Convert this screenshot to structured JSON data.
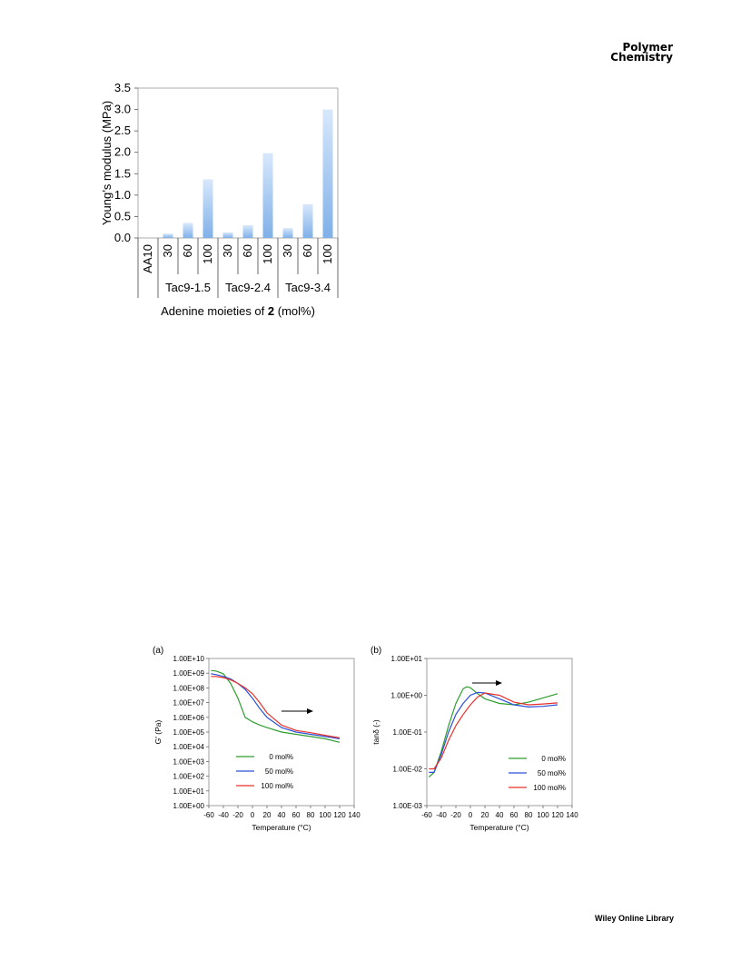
{
  "journal": {
    "line1": "Polymer",
    "line2": "Chemistry"
  },
  "footer": "Wiley Online Library",
  "chart_data": [
    {
      "type": "bar",
      "ylabel": "Young’s modulus (MPa)",
      "xlabel_prefix": "Adenine moieties of ",
      "xlabel_bold": "2",
      "xlabel_suffix": " (mol%)",
      "ylim": [
        0,
        3.5
      ],
      "yticks": [
        "0.0",
        "0.5",
        "1.0",
        "1.5",
        "2.0",
        "2.5",
        "3.0",
        "3.5"
      ],
      "categories": [
        "AA10",
        "30",
        "60",
        "100",
        "30",
        "60",
        "100",
        "30",
        "60",
        "100"
      ],
      "groups": [
        "Tac9-1.5",
        "Tac9-2.4",
        "Tac9-3.4"
      ],
      "values": [
        0,
        0.1,
        0.35,
        1.37,
        0.13,
        0.3,
        1.98,
        0.23,
        0.79,
        3.0
      ],
      "color": "#7fb0e8"
    },
    {
      "type": "line",
      "panel": "(a)",
      "ylabel": "G' (Pa)",
      "xlabel": "Temperature (°C)",
      "log_scale_y": true,
      "ylim": [
        1,
        10000000000
      ],
      "yticks": [
        "1.00E+00",
        "1.00E+01",
        "1.00E+02",
        "1.00E+03",
        "1.00E+04",
        "1.00E+05",
        "1.00E+06",
        "1.00E+07",
        "1.00E+08",
        "1.00E+09",
        "1.00E+10"
      ],
      "xlim": [
        -60,
        140
      ],
      "xticks": [
        "-60",
        "-40",
        "-20",
        "0",
        "20",
        "40",
        "60",
        "80",
        "100",
        "120",
        "140"
      ],
      "series": [
        {
          "name": "0 mol%",
          "color": "#2e9e2e",
          "x": [
            -57,
            -50,
            -40,
            -30,
            -20,
            -10,
            0,
            10,
            20,
            40,
            60,
            80,
            100,
            120
          ],
          "y": [
            1500000000,
            1400000000,
            900000000,
            200000000,
            20000000,
            1000000,
            500000,
            300000,
            200000,
            100000,
            70000,
            50000,
            35000,
            20000
          ]
        },
        {
          "name": "50 mol%",
          "color": "#2b4fd8",
          "x": [
            -57,
            -50,
            -40,
            -30,
            -20,
            -10,
            0,
            10,
            20,
            40,
            60,
            80,
            100,
            120
          ],
          "y": [
            900000000,
            800000000,
            600000000,
            400000000,
            200000000,
            80000000,
            20000000,
            4000000,
            1000000,
            200000,
            100000,
            70000,
            50000,
            35000
          ]
        },
        {
          "name": "100 mol%",
          "color": "#e8312a",
          "x": [
            -57,
            -50,
            -40,
            -30,
            -20,
            -10,
            0,
            10,
            20,
            40,
            60,
            80,
            100,
            120
          ],
          "y": [
            600000000,
            600000000,
            500000000,
            350000000,
            200000000,
            100000000,
            40000000,
            10000000,
            2000000,
            300000,
            130000,
            90000,
            60000,
            40000
          ]
        }
      ],
      "legend_position": "bottom-left"
    },
    {
      "type": "line",
      "panel": "(b)",
      "ylabel": "tanδ (-)",
      "xlabel": "Temperature (°C)",
      "log_scale_y": true,
      "ylim": [
        0.001,
        10
      ],
      "yticks": [
        "1.00E-03",
        "1.00E-02",
        "1.00E-01",
        "1.00E+00",
        "1.00E+01"
      ],
      "xlim": [
        -60,
        140
      ],
      "xticks": [
        "-60",
        "-40",
        "-20",
        "0",
        "20",
        "40",
        "60",
        "80",
        "100",
        "120",
        "140"
      ],
      "series": [
        {
          "name": "0 mol%",
          "color": "#2e9e2e",
          "x": [
            -57,
            -50,
            -40,
            -30,
            -20,
            -10,
            -5,
            0,
            10,
            20,
            40,
            60,
            80,
            100,
            120
          ],
          "y": [
            0.006,
            0.008,
            0.03,
            0.15,
            0.6,
            1.5,
            1.7,
            1.6,
            1.1,
            0.8,
            0.6,
            0.55,
            0.65,
            0.85,
            1.1
          ]
        },
        {
          "name": "50 mol%",
          "color": "#2b4fd8",
          "x": [
            -57,
            -50,
            -40,
            -30,
            -20,
            -10,
            0,
            10,
            20,
            40,
            60,
            80,
            100,
            120
          ],
          "y": [
            0.008,
            0.008,
            0.025,
            0.1,
            0.3,
            0.6,
            1.0,
            1.2,
            1.15,
            0.8,
            0.55,
            0.48,
            0.5,
            0.55
          ]
        },
        {
          "name": "100 mol%",
          "color": "#e8312a",
          "x": [
            -57,
            -50,
            -40,
            -30,
            -20,
            -10,
            0,
            10,
            20,
            40,
            60,
            80,
            100,
            120
          ],
          "y": [
            0.01,
            0.01,
            0.02,
            0.06,
            0.15,
            0.3,
            0.55,
            0.9,
            1.15,
            1.0,
            0.65,
            0.55,
            0.58,
            0.62
          ]
        }
      ],
      "legend_position": "bottom-right"
    }
  ]
}
